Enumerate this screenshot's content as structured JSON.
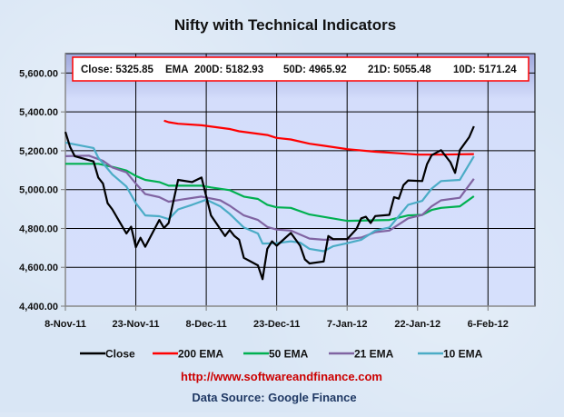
{
  "chart_data": {
    "type": "line",
    "title": "Nifty with Technical Indicators",
    "xlim": [
      "2011-11-08",
      "2012-02-16"
    ],
    "ylim": [
      4400,
      5700
    ],
    "grid": true,
    "legend_placement": "bottom",
    "x_ticks": [
      "8-Nov-11",
      "23-Nov-11",
      "8-Dec-11",
      "23-Dec-11",
      "7-Jan-12",
      "22-Jan-12",
      "6-Feb-12"
    ],
    "x_tick_dates": [
      "2011-11-08",
      "2011-11-23",
      "2011-12-08",
      "2011-12-23",
      "2012-01-07",
      "2012-01-22",
      "2012-02-06"
    ],
    "y_ticks": [
      "4,400.00",
      "4,600.00",
      "4,800.00",
      "5,000.00",
      "5,200.00",
      "5,400.00",
      "5,600.00"
    ],
    "y_tick_values": [
      4400,
      4600,
      4800,
      5000,
      5200,
      5400,
      5600
    ],
    "info_box": {
      "close": "Close: 5325.85",
      "ema": "EMA",
      "d200": "200D: 5182.93",
      "d50": "50D: 4965.92",
      "d21": "21D: 5055.48",
      "d10": "10D: 5171.24"
    },
    "series": [
      {
        "name": "Close",
        "color": "#000000",
        "points": [
          [
            "2011-11-08",
            5297
          ],
          [
            "2011-11-09",
            5219
          ],
          [
            "2011-11-10",
            5172
          ],
          [
            "2011-11-14",
            5145
          ],
          [
            "2011-11-15",
            5062
          ],
          [
            "2011-11-16",
            5031
          ],
          [
            "2011-11-17",
            4930
          ],
          [
            "2011-11-18",
            4898
          ],
          [
            "2011-11-21",
            4774
          ],
          [
            "2011-11-22",
            4809
          ],
          [
            "2011-11-23",
            4703
          ],
          [
            "2011-11-24",
            4752
          ],
          [
            "2011-11-25",
            4706
          ],
          [
            "2011-11-28",
            4844
          ],
          [
            "2011-11-29",
            4802
          ],
          [
            "2011-11-30",
            4828
          ],
          [
            "2011-12-02",
            5050
          ],
          [
            "2011-12-05",
            5039
          ],
          [
            "2011-12-07",
            5062
          ],
          [
            "2011-12-09",
            4867
          ],
          [
            "2011-12-12",
            4761
          ],
          [
            "2011-12-13",
            4792
          ],
          [
            "2011-12-14",
            4761
          ],
          [
            "2011-12-15",
            4742
          ],
          [
            "2011-12-16",
            4649
          ],
          [
            "2011-12-19",
            4610
          ],
          [
            "2011-12-20",
            4539
          ],
          [
            "2011-12-21",
            4695
          ],
          [
            "2011-12-22",
            4734
          ],
          [
            "2011-12-23",
            4711
          ],
          [
            "2011-12-26",
            4777
          ],
          [
            "2011-12-28",
            4711
          ],
          [
            "2011-12-29",
            4641
          ],
          [
            "2011-12-30",
            4620
          ],
          [
            "2012-01-02",
            4630
          ],
          [
            "2012-01-03",
            4761
          ],
          [
            "2012-01-04",
            4745
          ],
          [
            "2012-01-07",
            4745
          ],
          [
            "2012-01-09",
            4797
          ],
          [
            "2012-01-10",
            4852
          ],
          [
            "2012-01-11",
            4860
          ],
          [
            "2012-01-12",
            4828
          ],
          [
            "2012-01-13",
            4864
          ],
          [
            "2012-01-16",
            4870
          ],
          [
            "2012-01-17",
            4961
          ],
          [
            "2012-01-18",
            4953
          ],
          [
            "2012-01-19",
            5023
          ],
          [
            "2012-01-20",
            5047
          ],
          [
            "2012-01-23",
            5044
          ],
          [
            "2012-01-24",
            5130
          ],
          [
            "2012-01-25",
            5177
          ],
          [
            "2012-01-27",
            5203
          ],
          [
            "2012-01-29",
            5141
          ],
          [
            "2012-01-30",
            5086
          ],
          [
            "2012-01-31",
            5203
          ],
          [
            "2012-02-02",
            5270
          ],
          [
            "2012-02-03",
            5325.85
          ]
        ]
      },
      {
        "name": "200 EMA",
        "color": "#ff0000",
        "points": [
          [
            "2011-11-29",
            5355
          ],
          [
            "2011-11-30",
            5347
          ],
          [
            "2011-12-02",
            5339
          ],
          [
            "2011-12-07",
            5331
          ],
          [
            "2011-12-13",
            5312
          ],
          [
            "2011-12-15",
            5300
          ],
          [
            "2011-12-21",
            5281
          ],
          [
            "2011-12-23",
            5266
          ],
          [
            "2011-12-26",
            5258
          ],
          [
            "2011-12-30",
            5236
          ],
          [
            "2012-01-02",
            5226
          ],
          [
            "2012-01-07",
            5208
          ],
          [
            "2012-01-13",
            5195
          ],
          [
            "2012-01-18",
            5187
          ],
          [
            "2012-01-22",
            5180
          ],
          [
            "2012-01-27",
            5180
          ],
          [
            "2012-02-03",
            5182.93
          ]
        ]
      },
      {
        "name": "50 EMA",
        "color": "#00b050",
        "points": [
          [
            "2011-11-08",
            5133
          ],
          [
            "2011-11-15",
            5133
          ],
          [
            "2011-11-18",
            5117
          ],
          [
            "2011-11-21",
            5098
          ],
          [
            "2011-11-23",
            5070
          ],
          [
            "2011-11-25",
            5050
          ],
          [
            "2011-11-28",
            5039
          ],
          [
            "2011-11-30",
            5020
          ],
          [
            "2011-12-07",
            5020
          ],
          [
            "2011-12-09",
            5011
          ],
          [
            "2011-12-13",
            4997
          ],
          [
            "2011-12-16",
            4964
          ],
          [
            "2011-12-19",
            4952
          ],
          [
            "2011-12-21",
            4922
          ],
          [
            "2011-12-23",
            4909
          ],
          [
            "2011-12-26",
            4906
          ],
          [
            "2011-12-30",
            4872
          ],
          [
            "2012-01-07",
            4839
          ],
          [
            "2012-01-16",
            4844
          ],
          [
            "2012-01-20",
            4867
          ],
          [
            "2012-01-23",
            4870
          ],
          [
            "2012-01-25",
            4895
          ],
          [
            "2012-01-27",
            4906
          ],
          [
            "2012-01-31",
            4914
          ],
          [
            "2012-02-03",
            4965.92
          ]
        ]
      },
      {
        "name": "21 EMA",
        "color": "#8064a2",
        "points": [
          [
            "2011-11-08",
            5172
          ],
          [
            "2011-11-13",
            5175
          ],
          [
            "2011-11-16",
            5148
          ],
          [
            "2011-11-18",
            5114
          ],
          [
            "2011-11-21",
            5089
          ],
          [
            "2011-11-23",
            5031
          ],
          [
            "2011-11-25",
            4977
          ],
          [
            "2011-11-28",
            4961
          ],
          [
            "2011-11-30",
            4938
          ],
          [
            "2011-12-03",
            4950
          ],
          [
            "2011-12-07",
            4964
          ],
          [
            "2011-12-11",
            4945
          ],
          [
            "2011-12-13",
            4917
          ],
          [
            "2011-12-16",
            4867
          ],
          [
            "2011-12-19",
            4844
          ],
          [
            "2011-12-21",
            4808
          ],
          [
            "2011-12-23",
            4794
          ],
          [
            "2011-12-26",
            4789
          ],
          [
            "2011-12-30",
            4748
          ],
          [
            "2012-01-02",
            4742
          ],
          [
            "2012-01-07",
            4745
          ],
          [
            "2012-01-10",
            4753
          ],
          [
            "2012-01-13",
            4781
          ],
          [
            "2012-01-16",
            4789
          ],
          [
            "2012-01-20",
            4852
          ],
          [
            "2012-01-23",
            4870
          ],
          [
            "2012-01-25",
            4914
          ],
          [
            "2012-01-27",
            4945
          ],
          [
            "2012-01-31",
            4958
          ],
          [
            "2012-02-03",
            5055.48
          ]
        ]
      },
      {
        "name": "10 EMA",
        "color": "#4bacc6",
        "points": [
          [
            "2011-11-08",
            5242
          ],
          [
            "2011-11-14",
            5214
          ],
          [
            "2011-11-15",
            5164
          ],
          [
            "2011-11-18",
            5078
          ],
          [
            "2011-11-21",
            5016
          ],
          [
            "2011-11-23",
            4930
          ],
          [
            "2011-11-25",
            4867
          ],
          [
            "2011-11-28",
            4863
          ],
          [
            "2011-11-30",
            4848
          ],
          [
            "2011-12-02",
            4898
          ],
          [
            "2011-12-05",
            4922
          ],
          [
            "2011-12-08",
            4948
          ],
          [
            "2011-12-11",
            4914
          ],
          [
            "2011-12-13",
            4875
          ],
          [
            "2011-12-16",
            4805
          ],
          [
            "2011-12-19",
            4774
          ],
          [
            "2011-12-20",
            4722
          ],
          [
            "2011-12-23",
            4724
          ],
          [
            "2011-12-26",
            4734
          ],
          [
            "2011-12-28",
            4727
          ],
          [
            "2011-12-30",
            4695
          ],
          [
            "2012-01-02",
            4683
          ],
          [
            "2012-01-04",
            4708
          ],
          [
            "2012-01-07",
            4724
          ],
          [
            "2012-01-10",
            4742
          ],
          [
            "2012-01-13",
            4789
          ],
          [
            "2012-01-16",
            4805
          ],
          [
            "2012-01-20",
            4922
          ],
          [
            "2012-01-23",
            4942
          ],
          [
            "2012-01-25",
            5005
          ],
          [
            "2012-01-27",
            5044
          ],
          [
            "2012-01-31",
            5050
          ],
          [
            "2012-02-03",
            5171.24
          ]
        ]
      }
    ]
  },
  "footer": {
    "url": "http://www.softwareandfinance.com",
    "source": "Data Source: Google Finance",
    "url_color": "#cc0000",
    "source_color": "#1f3864"
  }
}
